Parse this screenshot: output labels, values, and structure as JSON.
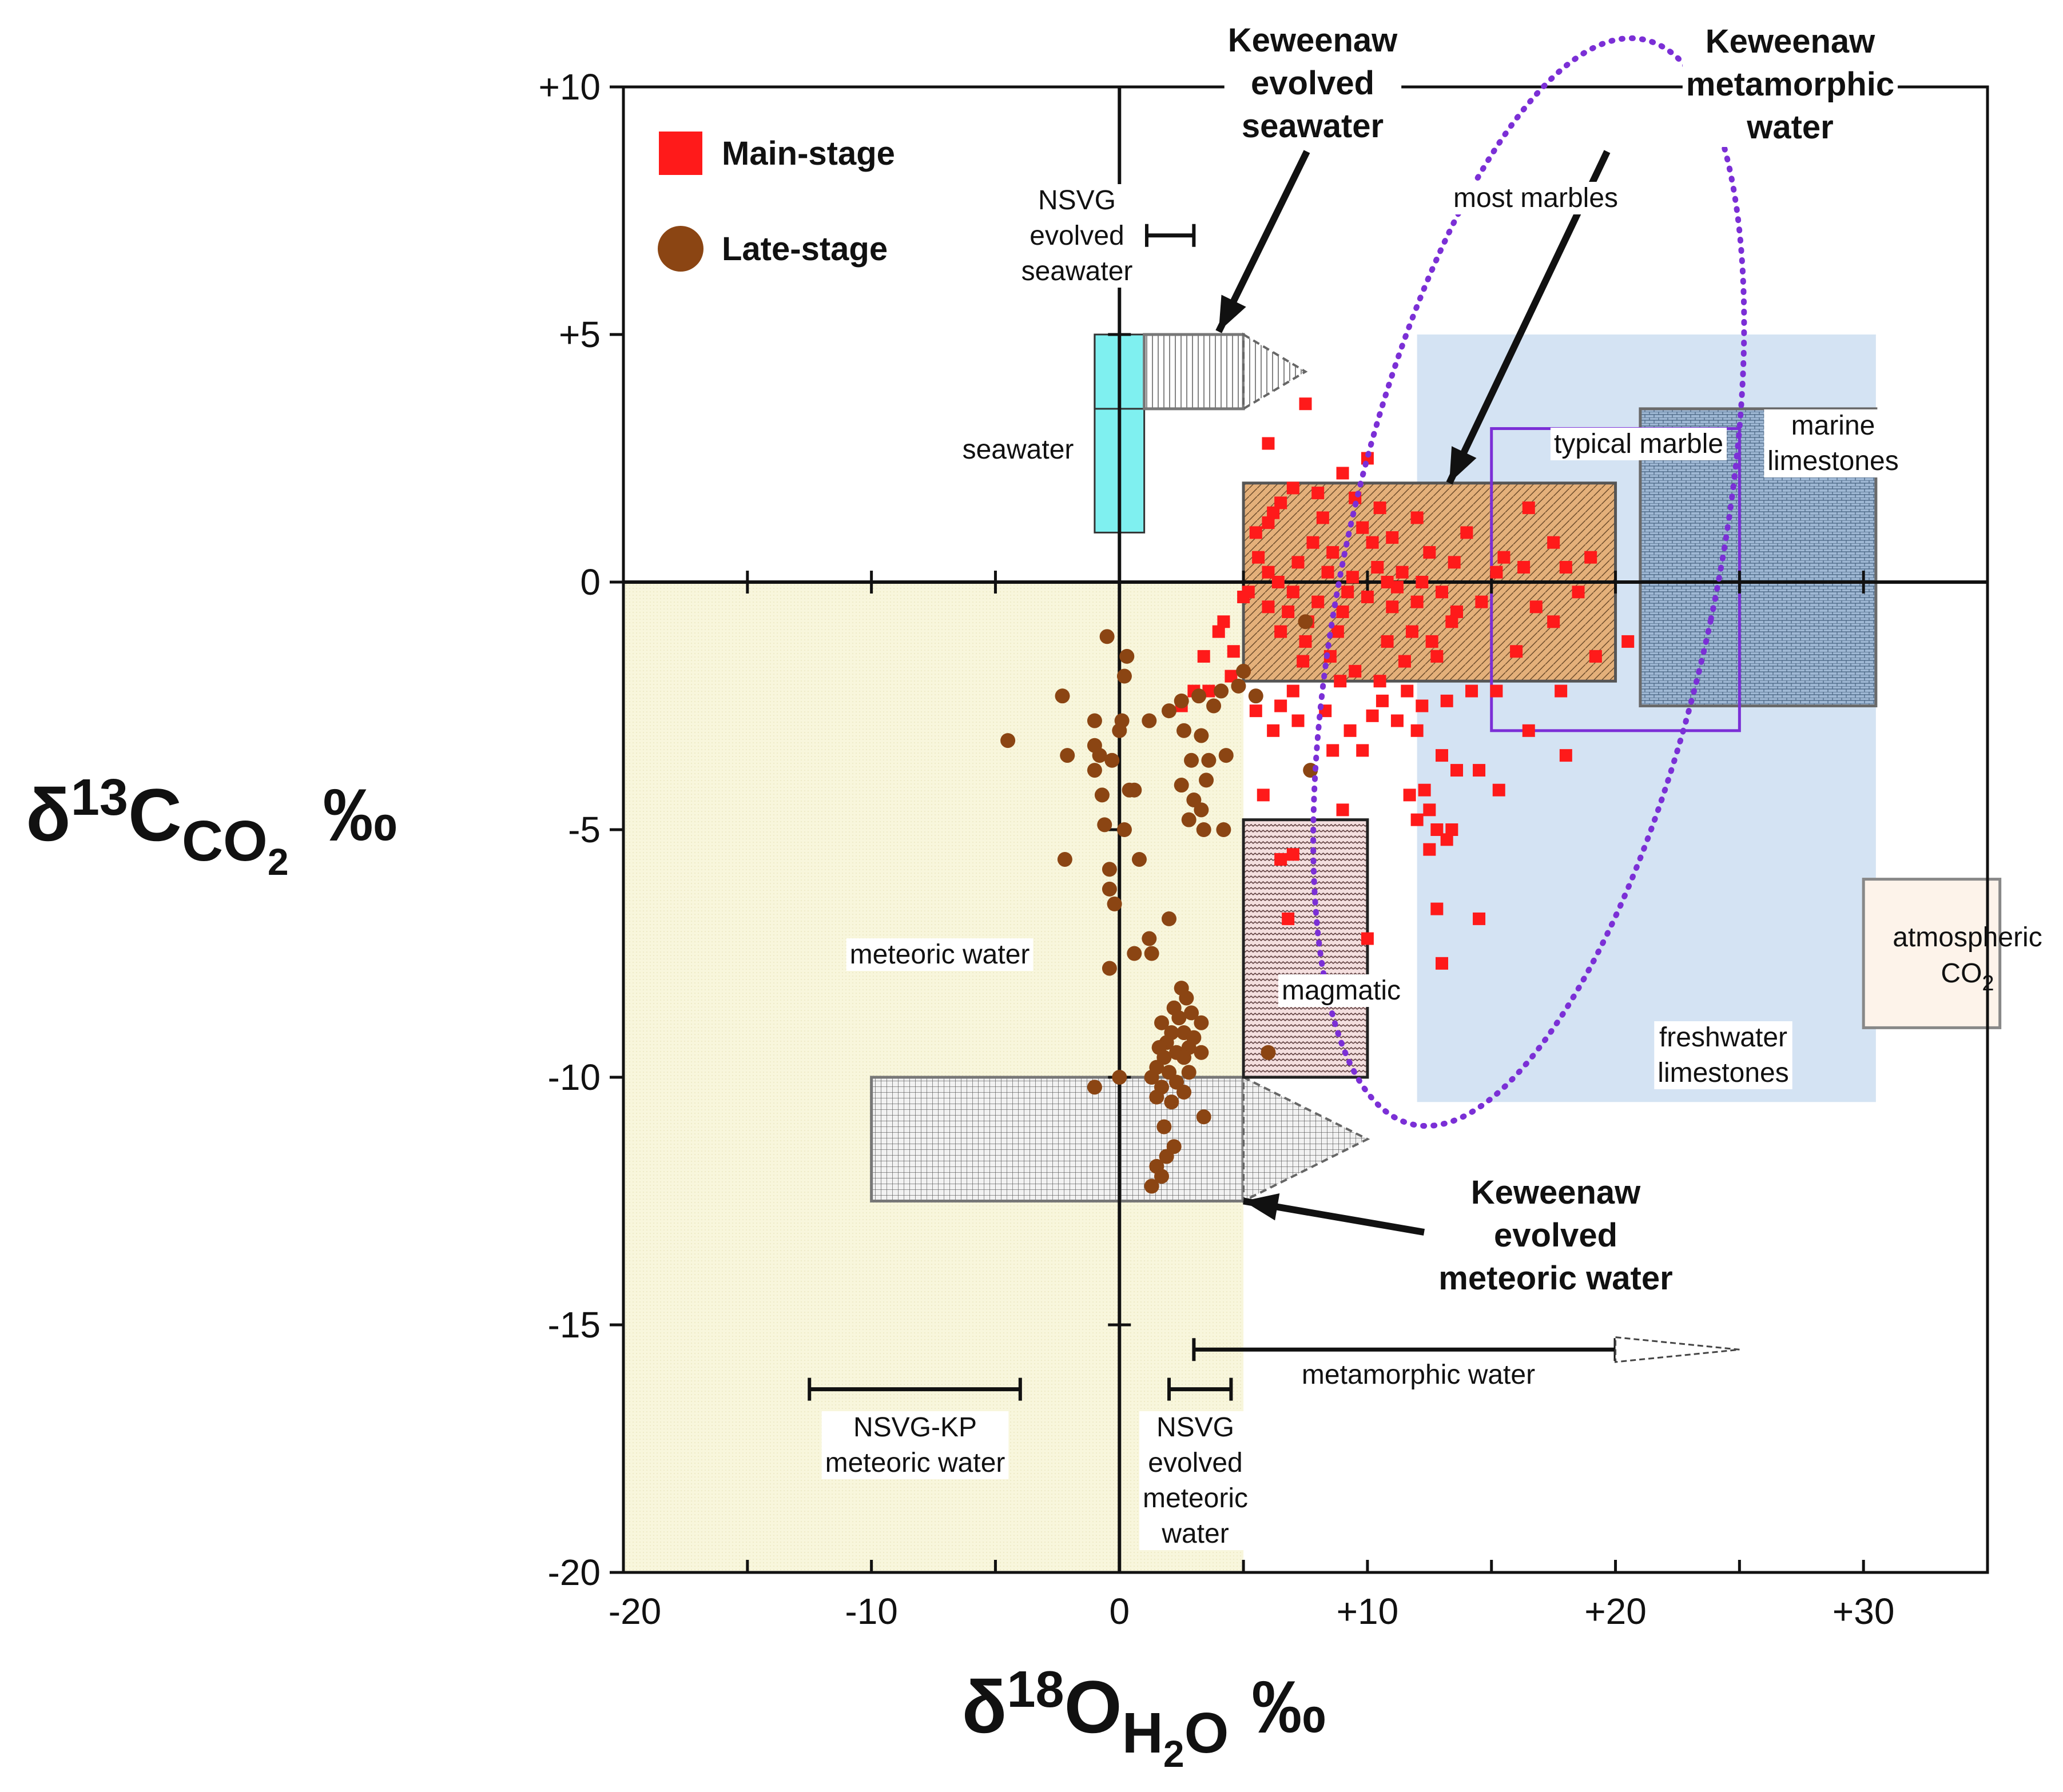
{
  "chart_data": {
    "type": "scatter",
    "x_axis": {
      "range": [
        -20,
        35
      ],
      "ticks": [
        -20,
        -10,
        0,
        10,
        20,
        30
      ],
      "tick_labels": [
        "-20",
        "-10",
        "0",
        "+10",
        "+20",
        "+30"
      ],
      "label": {
        "delta": "δ",
        "mass": "18",
        "element": "O",
        "subscript_a": "H",
        "subscript_b": "2",
        "subscript_c": "O",
        "unit": "‰"
      }
    },
    "y_axis": {
      "range": [
        -20,
        10
      ],
      "ticks": [
        -20,
        -15,
        -10,
        -5,
        0,
        5,
        10
      ],
      "tick_labels": [
        "-20",
        "-15",
        "-10",
        "-5",
        "0",
        "+5",
        "+10"
      ],
      "label": {
        "delta": "δ",
        "mass": "13",
        "element": "C",
        "subscript_a": "CO",
        "subscript_b": "2",
        "unit": "‰"
      }
    },
    "legend": {
      "position": "top-left",
      "items": [
        {
          "name": "Main-stage",
          "marker": "square",
          "color": "#ff1a1a"
        },
        {
          "name": "Late-stage",
          "marker": "circle",
          "color": "#8b4513"
        }
      ]
    },
    "series": [
      {
        "name": "Main-stage",
        "color": "#ff1a1a",
        "points": [
          [
            7.5,
            3.6
          ],
          [
            6,
            2.8
          ],
          [
            9,
            2.2
          ],
          [
            10,
            2.5
          ],
          [
            6.5,
            1.6
          ],
          [
            7,
            1.9
          ],
          [
            8,
            1.8
          ],
          [
            9.5,
            1.7
          ],
          [
            10.5,
            1.5
          ],
          [
            12,
            1.3
          ],
          [
            14,
            1.0
          ],
          [
            16.5,
            1.5
          ],
          [
            17.5,
            0.8
          ],
          [
            15.5,
            0.5
          ],
          [
            18,
            0.3
          ],
          [
            19,
            0.5
          ],
          [
            5.5,
            1.0
          ],
          [
            6,
            1.2
          ],
          [
            8.2,
            1.3
          ],
          [
            9.8,
            1.1
          ],
          [
            11,
            0.9
          ],
          [
            12.5,
            0.6
          ],
          [
            13.5,
            0.4
          ],
          [
            15.2,
            0.2
          ],
          [
            16.8,
            -0.5
          ],
          [
            17.5,
            -0.8
          ],
          [
            18.5,
            -0.2
          ],
          [
            20.5,
            -1.2
          ],
          [
            19.2,
            -1.5
          ],
          [
            17.8,
            -2.2
          ],
          [
            16,
            -1.4
          ],
          [
            15.2,
            -2.2
          ],
          [
            14.2,
            -2.2
          ],
          [
            13.2,
            -2.4
          ],
          [
            12.8,
            -1.5
          ],
          [
            11.8,
            -1.0
          ],
          [
            12,
            -0.4
          ],
          [
            13,
            -0.2
          ],
          [
            11,
            -0.5
          ],
          [
            10,
            -0.3
          ],
          [
            9,
            -0.6
          ],
          [
            8,
            -0.4
          ],
          [
            7,
            -0.2
          ],
          [
            6,
            -0.5
          ],
          [
            5,
            -0.3
          ],
          [
            4,
            -1.0
          ],
          [
            3.4,
            -1.5
          ],
          [
            3,
            -2.2
          ],
          [
            2.5,
            -2.5
          ],
          [
            4.6,
            -1.4
          ],
          [
            6.5,
            -1.0
          ],
          [
            7.5,
            -1.2
          ],
          [
            8.5,
            -1.5
          ],
          [
            9.5,
            -1.8
          ],
          [
            10.5,
            -2.0
          ],
          [
            11.5,
            -1.6
          ],
          [
            12.2,
            -2.5
          ],
          [
            12,
            -3.0
          ],
          [
            11.2,
            -2.8
          ],
          [
            10.2,
            -2.7
          ],
          [
            9.3,
            -3.0
          ],
          [
            8.3,
            -2.6
          ],
          [
            7.2,
            -2.8
          ],
          [
            6.2,
            -3.0
          ],
          [
            5.5,
            -2.6
          ],
          [
            13,
            -3.5
          ],
          [
            13.6,
            -3.8
          ],
          [
            14.5,
            -3.8
          ],
          [
            15.3,
            -4.2
          ],
          [
            16.5,
            -3.0
          ],
          [
            18,
            -3.5
          ],
          [
            11.7,
            -4.3
          ],
          [
            12.3,
            -4.2
          ],
          [
            12.5,
            -4.6
          ],
          [
            12,
            -4.8
          ],
          [
            12.8,
            -5.0
          ],
          [
            13.4,
            -5.0
          ],
          [
            12.5,
            -5.4
          ],
          [
            13.2,
            -5.2
          ],
          [
            12.8,
            -6.6
          ],
          [
            14.5,
            -6.8
          ],
          [
            13,
            -7.7
          ],
          [
            10,
            -7.2
          ],
          [
            9,
            -4.6
          ],
          [
            6.5,
            -5.6
          ],
          [
            7,
            -5.5
          ],
          [
            6.8,
            -6.8
          ],
          [
            4.5,
            -1.9
          ],
          [
            5.2,
            -0.2
          ],
          [
            6,
            0.2
          ],
          [
            7.2,
            0.4
          ],
          [
            8.6,
            0.6
          ],
          [
            9.4,
            0.1
          ],
          [
            10.4,
            0.3
          ],
          [
            11.4,
            0.2
          ],
          [
            12.2,
            0.0
          ],
          [
            13.6,
            -0.6
          ],
          [
            14.6,
            -0.4
          ],
          [
            16.3,
            0.3
          ],
          [
            5.6,
            0.5
          ],
          [
            6.4,
            0.0
          ],
          [
            7.6,
            -0.8
          ],
          [
            8.8,
            -1.0
          ],
          [
            10.8,
            -1.2
          ],
          [
            11.6,
            -2.2
          ],
          [
            7,
            -2.2
          ],
          [
            6.5,
            -2.5
          ],
          [
            9.8,
            -3.4
          ],
          [
            8.6,
            -3.4
          ],
          [
            5.8,
            -4.3
          ],
          [
            3.6,
            -2.2
          ],
          [
            4.2,
            -0.8
          ],
          [
            6.2,
            1.4
          ],
          [
            7.8,
            0.8
          ],
          [
            8.4,
            0.2
          ],
          [
            9.2,
            -0.2
          ],
          [
            10.2,
            0.8
          ],
          [
            10.8,
            0.0
          ],
          [
            11.2,
            -0.1
          ],
          [
            12.6,
            -1.2
          ],
          [
            13.4,
            -0.8
          ],
          [
            7.4,
            -1.6
          ],
          [
            6.8,
            -0.6
          ],
          [
            8.9,
            -2.0
          ],
          [
            10.6,
            -2.4
          ]
        ]
      },
      {
        "name": "Late-stage",
        "color": "#8b4513",
        "points": [
          [
            -0.5,
            -1.1
          ],
          [
            0.3,
            -1.5
          ],
          [
            0.2,
            -1.9
          ],
          [
            -2.3,
            -2.3
          ],
          [
            -1,
            -2.8
          ],
          [
            0,
            -3.0
          ],
          [
            0.1,
            -2.8
          ],
          [
            -4.5,
            -3.2
          ],
          [
            -2.1,
            -3.5
          ],
          [
            -1,
            -3.3
          ],
          [
            -0.8,
            -3.5
          ],
          [
            -0.3,
            -3.6
          ],
          [
            -1,
            -3.8
          ],
          [
            0.6,
            -4.2
          ],
          [
            0.4,
            -4.2
          ],
          [
            -0.7,
            -4.3
          ],
          [
            -0.6,
            -4.9
          ],
          [
            -2.2,
            -5.6
          ],
          [
            0.2,
            -5.0
          ],
          [
            -0.4,
            -5.8
          ],
          [
            -0.4,
            -6.2
          ],
          [
            -0.2,
            -6.5
          ],
          [
            0.8,
            -5.6
          ],
          [
            2,
            -6.8
          ],
          [
            1.2,
            -7.2
          ],
          [
            1.3,
            -7.5
          ],
          [
            0.6,
            -7.5
          ],
          [
            -0.4,
            -7.8
          ],
          [
            2.5,
            -8.2
          ],
          [
            2.7,
            -8.4
          ],
          [
            2.9,
            -8.7
          ],
          [
            2.2,
            -8.6
          ],
          [
            2.4,
            -8.8
          ],
          [
            1.7,
            -8.9
          ],
          [
            3.3,
            -8.9
          ],
          [
            2.6,
            -9.1
          ],
          [
            2.1,
            -9.1
          ],
          [
            3,
            -9.2
          ],
          [
            1.9,
            -9.3
          ],
          [
            2.8,
            -9.4
          ],
          [
            1.6,
            -9.4
          ],
          [
            2.3,
            -9.5
          ],
          [
            3.3,
            -9.5
          ],
          [
            1.8,
            -9.6
          ],
          [
            2.6,
            -9.6
          ],
          [
            1.5,
            -9.8
          ],
          [
            2,
            -9.9
          ],
          [
            2.8,
            -9.9
          ],
          [
            1.3,
            -10.0
          ],
          [
            2.3,
            -10.1
          ],
          [
            1.7,
            -10.2
          ],
          [
            2.6,
            -10.3
          ],
          [
            1.5,
            -10.4
          ],
          [
            2.1,
            -10.5
          ],
          [
            -1,
            -10.2
          ],
          [
            0,
            -10.0
          ],
          [
            3.4,
            -10.8
          ],
          [
            1.8,
            -11.0
          ],
          [
            2.2,
            -11.4
          ],
          [
            1.5,
            -11.8
          ],
          [
            1.7,
            -12.0
          ],
          [
            1.3,
            -12.2
          ],
          [
            1.9,
            -11.6
          ],
          [
            1.2,
            -2.8
          ],
          [
            2,
            -2.6
          ],
          [
            2.5,
            -2.4
          ],
          [
            3.2,
            -2.3
          ],
          [
            3.8,
            -2.5
          ],
          [
            4.1,
            -2.2
          ],
          [
            4.8,
            -2.1
          ],
          [
            2.6,
            -3.0
          ],
          [
            3.3,
            -3.1
          ],
          [
            2.9,
            -3.6
          ],
          [
            3.6,
            -3.6
          ],
          [
            4.3,
            -3.5
          ],
          [
            3.5,
            -4.0
          ],
          [
            2.5,
            -4.1
          ],
          [
            3,
            -4.4
          ],
          [
            3.3,
            -4.6
          ],
          [
            2.8,
            -4.8
          ],
          [
            3.4,
            -5.0
          ],
          [
            4.2,
            -5.0
          ],
          [
            5.5,
            -2.3
          ],
          [
            5,
            -1.8
          ],
          [
            7.5,
            -0.8
          ],
          [
            7.7,
            -3.8
          ],
          [
            6,
            -9.5
          ]
        ]
      }
    ],
    "regions": [
      {
        "name": "meteoric water",
        "label": "meteoric water"
      },
      {
        "name": "seawater",
        "label": "seawater"
      },
      {
        "name": "Keweenaw evolved seawater",
        "label_lines": [
          "Keweenaw",
          "evolved",
          "seawater"
        ]
      },
      {
        "name": "Keweenaw metamorphic water",
        "label_lines": [
          "Keweenaw",
          "metamorphic",
          "water"
        ]
      },
      {
        "name": "Keweenaw evolved meteoric water",
        "label_lines": [
          "Keweenaw",
          "evolved",
          "meteoric water"
        ]
      },
      {
        "name": "most marbles",
        "label": "most marbles"
      },
      {
        "name": "typical marble",
        "label": "typical marble"
      },
      {
        "name": "marine limestones",
        "label_lines": [
          "marine",
          "limestones"
        ]
      },
      {
        "name": "freshwater limestones",
        "label_lines": [
          "freshwater",
          "limestones"
        ]
      },
      {
        "name": "magmatic",
        "label": "magmatic"
      },
      {
        "name": "atmospheric CO2",
        "label_lines": [
          "atmospheric",
          "CO",
          "2"
        ]
      }
    ],
    "ranges": [
      {
        "name": "NSVG evolved seawater",
        "label_lines": [
          "NSVG",
          "evolved",
          "seawater"
        ]
      },
      {
        "name": "NSVG-KP meteoric water",
        "label_lines": [
          "NSVG-KP",
          "meteoric water"
        ]
      },
      {
        "name": "NSVG evolved meteoric water",
        "label_lines": [
          "NSVG",
          "evolved",
          "meteoric",
          "water"
        ]
      },
      {
        "name": "metamorphic water",
        "label": "metamorphic water"
      }
    ]
  }
}
